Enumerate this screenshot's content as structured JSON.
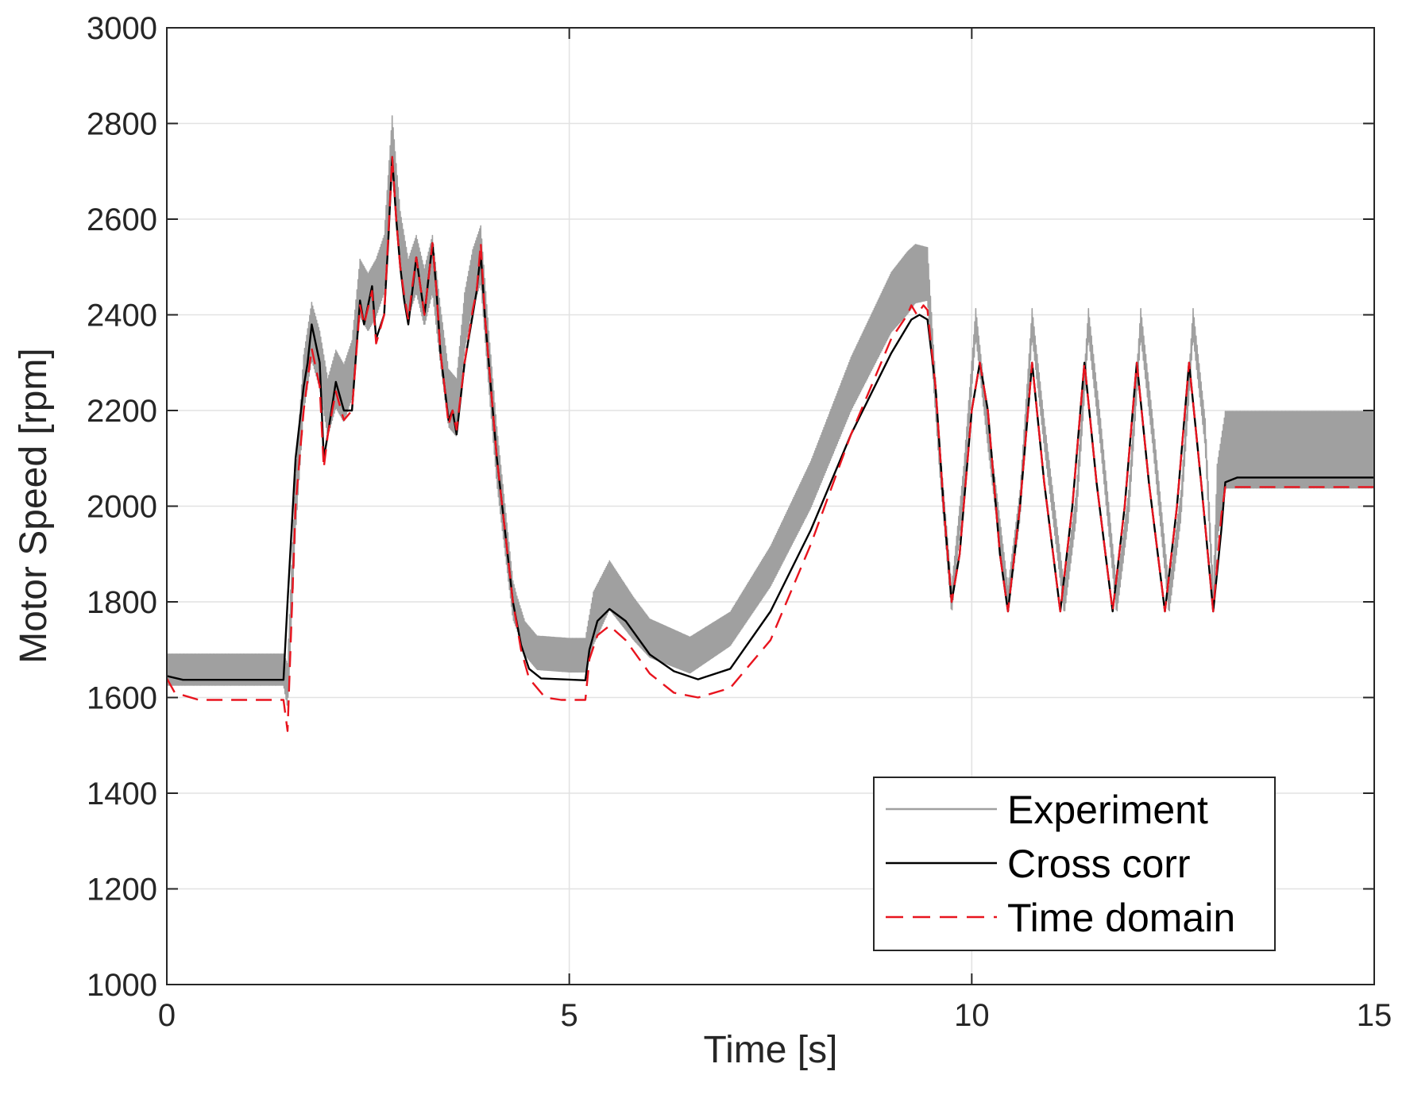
{
  "chart_data": {
    "type": "line",
    "title": "",
    "xlabel": "Time [s]",
    "ylabel": "Motor Speed [rpm]",
    "xlim": [
      0,
      15
    ],
    "ylim": [
      1000,
      3000
    ],
    "xticks": [
      0,
      5,
      10,
      15
    ],
    "yticks": [
      1000,
      1200,
      1400,
      1600,
      1800,
      2000,
      2200,
      2400,
      2600,
      2800,
      3000
    ],
    "grid": true,
    "legend_position": "bottom-right",
    "series": [
      {
        "name": "Experiment",
        "color": "#a0a0a0",
        "style": "solid",
        "ripple_amplitude": [
          [
            0,
            65
          ],
          [
            1.45,
            65
          ],
          [
            1.55,
            120
          ],
          [
            4.1,
            120
          ],
          [
            4.35,
            70
          ],
          [
            5.2,
            70
          ],
          [
            5.3,
            110
          ],
          [
            6.0,
            80
          ],
          [
            7.0,
            70
          ],
          [
            9.2,
            130
          ],
          [
            9.45,
            110
          ],
          [
            9.6,
            60
          ],
          [
            13.0,
            60
          ],
          [
            13.05,
            160
          ],
          [
            15,
            160
          ]
        ],
        "points": [
          [
            0,
            1655
          ],
          [
            1.45,
            1655
          ],
          [
            1.5,
            1620
          ],
          [
            1.6,
            2000
          ],
          [
            1.7,
            2250
          ],
          [
            1.8,
            2360
          ],
          [
            1.9,
            2300
          ],
          [
            2.0,
            2200
          ],
          [
            2.1,
            2260
          ],
          [
            2.2,
            2230
          ],
          [
            2.3,
            2280
          ],
          [
            2.4,
            2450
          ],
          [
            2.5,
            2420
          ],
          [
            2.6,
            2450
          ],
          [
            2.7,
            2500
          ],
          [
            2.8,
            2750
          ],
          [
            2.9,
            2550
          ],
          [
            3.0,
            2450
          ],
          [
            3.1,
            2500
          ],
          [
            3.2,
            2430
          ],
          [
            3.3,
            2500
          ],
          [
            3.4,
            2350
          ],
          [
            3.5,
            2220
          ],
          [
            3.6,
            2200
          ],
          [
            3.7,
            2380
          ],
          [
            3.8,
            2470
          ],
          [
            3.9,
            2520
          ],
          [
            4.0,
            2300
          ],
          [
            4.1,
            2100
          ],
          [
            4.2,
            1950
          ],
          [
            4.3,
            1800
          ],
          [
            4.45,
            1720
          ],
          [
            4.6,
            1690
          ],
          [
            5.0,
            1685
          ],
          [
            5.2,
            1685
          ],
          [
            5.3,
            1760
          ],
          [
            5.5,
            1830
          ],
          [
            5.8,
            1760
          ],
          [
            6.0,
            1720
          ],
          [
            6.5,
            1685
          ],
          [
            7.0,
            1740
          ],
          [
            7.5,
            1870
          ],
          [
            8.0,
            2040
          ],
          [
            8.5,
            2250
          ],
          [
            9.0,
            2420
          ],
          [
            9.3,
            2480
          ],
          [
            9.45,
            2480
          ],
          [
            9.6,
            2100
          ],
          [
            9.75,
            1800
          ],
          [
            9.9,
            2050
          ],
          [
            10.05,
            2380
          ],
          [
            10.2,
            2150
          ],
          [
            10.45,
            1800
          ],
          [
            10.6,
            2000
          ],
          [
            10.75,
            2380
          ],
          [
            10.9,
            2150
          ],
          [
            11.15,
            1800
          ],
          [
            11.3,
            2000
          ],
          [
            11.45,
            2380
          ],
          [
            11.6,
            2150
          ],
          [
            11.8,
            1800
          ],
          [
            11.95,
            2000
          ],
          [
            12.1,
            2380
          ],
          [
            12.25,
            2150
          ],
          [
            12.45,
            1800
          ],
          [
            12.6,
            2000
          ],
          [
            12.75,
            2380
          ],
          [
            12.9,
            2150
          ],
          [
            13.0,
            1800
          ],
          [
            13.05,
            2000
          ],
          [
            13.15,
            2110
          ],
          [
            15,
            2110
          ]
        ]
      },
      {
        "name": "Cross corr",
        "color": "#000000",
        "style": "solid",
        "points": [
          [
            0,
            1645
          ],
          [
            0.2,
            1637
          ],
          [
            1.45,
            1637
          ],
          [
            1.5,
            1800
          ],
          [
            1.6,
            2100
          ],
          [
            1.7,
            2250
          ],
          [
            1.75,
            2300
          ],
          [
            1.8,
            2380
          ],
          [
            1.9,
            2300
          ],
          [
            1.95,
            2100
          ],
          [
            2.0,
            2150
          ],
          [
            2.1,
            2260
          ],
          [
            2.2,
            2200
          ],
          [
            2.3,
            2200
          ],
          [
            2.4,
            2430
          ],
          [
            2.45,
            2380
          ],
          [
            2.55,
            2460
          ],
          [
            2.6,
            2350
          ],
          [
            2.7,
            2400
          ],
          [
            2.75,
            2550
          ],
          [
            2.8,
            2730
          ],
          [
            2.85,
            2600
          ],
          [
            2.9,
            2500
          ],
          [
            2.95,
            2430
          ],
          [
            3.0,
            2380
          ],
          [
            3.05,
            2450
          ],
          [
            3.1,
            2520
          ],
          [
            3.2,
            2400
          ],
          [
            3.3,
            2550
          ],
          [
            3.35,
            2450
          ],
          [
            3.4,
            2320
          ],
          [
            3.45,
            2250
          ],
          [
            3.5,
            2180
          ],
          [
            3.55,
            2200
          ],
          [
            3.6,
            2150
          ],
          [
            3.7,
            2300
          ],
          [
            3.8,
            2400
          ],
          [
            3.85,
            2450
          ],
          [
            3.9,
            2530
          ],
          [
            3.95,
            2400
          ],
          [
            4.0,
            2300
          ],
          [
            4.05,
            2200
          ],
          [
            4.1,
            2100
          ],
          [
            4.2,
            1950
          ],
          [
            4.3,
            1800
          ],
          [
            4.4,
            1710
          ],
          [
            4.5,
            1660
          ],
          [
            4.65,
            1640
          ],
          [
            5.2,
            1636
          ],
          [
            5.25,
            1700
          ],
          [
            5.35,
            1760
          ],
          [
            5.5,
            1785
          ],
          [
            5.7,
            1760
          ],
          [
            6.0,
            1690
          ],
          [
            6.3,
            1655
          ],
          [
            6.6,
            1638
          ],
          [
            7.0,
            1660
          ],
          [
            7.5,
            1780
          ],
          [
            8.0,
            1950
          ],
          [
            8.5,
            2150
          ],
          [
            9.0,
            2320
          ],
          [
            9.25,
            2390
          ],
          [
            9.35,
            2400
          ],
          [
            9.45,
            2390
          ],
          [
            9.55,
            2250
          ],
          [
            9.65,
            2000
          ],
          [
            9.75,
            1800
          ],
          [
            9.85,
            1900
          ],
          [
            10.0,
            2200
          ],
          [
            10.1,
            2300
          ],
          [
            10.2,
            2200
          ],
          [
            10.35,
            1900
          ],
          [
            10.45,
            1780
          ],
          [
            10.6,
            2000
          ],
          [
            10.75,
            2300
          ],
          [
            10.9,
            2050
          ],
          [
            11.1,
            1780
          ],
          [
            11.25,
            2000
          ],
          [
            11.4,
            2300
          ],
          [
            11.55,
            2050
          ],
          [
            11.75,
            1780
          ],
          [
            11.9,
            2000
          ],
          [
            12.05,
            2300
          ],
          [
            12.2,
            2050
          ],
          [
            12.4,
            1780
          ],
          [
            12.55,
            2000
          ],
          [
            12.7,
            2300
          ],
          [
            12.85,
            2050
          ],
          [
            13.0,
            1780
          ],
          [
            13.1,
            1950
          ],
          [
            13.15,
            2050
          ],
          [
            13.3,
            2060
          ],
          [
            15,
            2060
          ]
        ]
      },
      {
        "name": "Time domain",
        "color": "#e8141e",
        "style": "dashed",
        "points": [
          [
            0,
            1640
          ],
          [
            0.1,
            1610
          ],
          [
            0.4,
            1595
          ],
          [
            1.45,
            1595
          ],
          [
            1.5,
            1530
          ],
          [
            1.6,
            2000
          ],
          [
            1.7,
            2200
          ],
          [
            1.8,
            2330
          ],
          [
            1.9,
            2250
          ],
          [
            1.95,
            2080
          ],
          [
            2.0,
            2150
          ],
          [
            2.1,
            2240
          ],
          [
            2.2,
            2180
          ],
          [
            2.3,
            2200
          ],
          [
            2.4,
            2420
          ],
          [
            2.45,
            2380
          ],
          [
            2.55,
            2450
          ],
          [
            2.6,
            2340
          ],
          [
            2.7,
            2400
          ],
          [
            2.75,
            2560
          ],
          [
            2.8,
            2730
          ],
          [
            2.85,
            2600
          ],
          [
            2.9,
            2500
          ],
          [
            2.95,
            2440
          ],
          [
            3.0,
            2390
          ],
          [
            3.05,
            2460
          ],
          [
            3.1,
            2520
          ],
          [
            3.2,
            2400
          ],
          [
            3.3,
            2550
          ],
          [
            3.35,
            2450
          ],
          [
            3.4,
            2320
          ],
          [
            3.45,
            2250
          ],
          [
            3.5,
            2170
          ],
          [
            3.55,
            2200
          ],
          [
            3.6,
            2160
          ],
          [
            3.7,
            2300
          ],
          [
            3.8,
            2410
          ],
          [
            3.85,
            2450
          ],
          [
            3.9,
            2550
          ],
          [
            3.95,
            2400
          ],
          [
            4.0,
            2300
          ],
          [
            4.05,
            2200
          ],
          [
            4.1,
            2100
          ],
          [
            4.2,
            1950
          ],
          [
            4.3,
            1800
          ],
          [
            4.4,
            1700
          ],
          [
            4.5,
            1640
          ],
          [
            4.7,
            1600
          ],
          [
            4.9,
            1595
          ],
          [
            5.2,
            1595
          ],
          [
            5.25,
            1680
          ],
          [
            5.35,
            1730
          ],
          [
            5.5,
            1750
          ],
          [
            5.7,
            1720
          ],
          [
            6.0,
            1650
          ],
          [
            6.3,
            1610
          ],
          [
            6.6,
            1600
          ],
          [
            7.0,
            1620
          ],
          [
            7.5,
            1720
          ],
          [
            8.0,
            1920
          ],
          [
            8.5,
            2150
          ],
          [
            9.0,
            2350
          ],
          [
            9.2,
            2400
          ],
          [
            9.25,
            2420
          ],
          [
            9.32,
            2400
          ],
          [
            9.4,
            2420
          ],
          [
            9.45,
            2410
          ],
          [
            9.55,
            2250
          ],
          [
            9.65,
            2000
          ],
          [
            9.75,
            1800
          ],
          [
            9.85,
            1900
          ],
          [
            10.0,
            2200
          ],
          [
            10.1,
            2300
          ],
          [
            10.2,
            2200
          ],
          [
            10.35,
            1900
          ],
          [
            10.45,
            1780
          ],
          [
            10.6,
            2000
          ],
          [
            10.75,
            2300
          ],
          [
            10.9,
            2050
          ],
          [
            11.1,
            1780
          ],
          [
            11.25,
            2000
          ],
          [
            11.4,
            2300
          ],
          [
            11.55,
            2050
          ],
          [
            11.75,
            1780
          ],
          [
            11.9,
            2000
          ],
          [
            12.05,
            2300
          ],
          [
            12.2,
            2050
          ],
          [
            12.4,
            1780
          ],
          [
            12.55,
            2000
          ],
          [
            12.7,
            2300
          ],
          [
            12.85,
            2050
          ],
          [
            13.0,
            1780
          ],
          [
            13.1,
            1980
          ],
          [
            13.15,
            2040
          ],
          [
            13.3,
            2040
          ],
          [
            15,
            2040
          ]
        ]
      }
    ]
  }
}
